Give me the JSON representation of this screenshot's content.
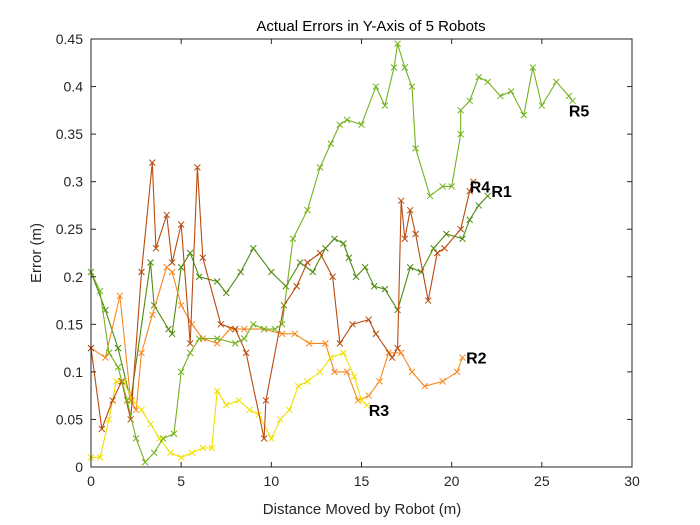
{
  "chart_data": {
    "type": "line",
    "title": "Actual Errors in Y-Axis of 5 Robots",
    "xlabel": "Distance Moved by Robot (m)",
    "ylabel": "Error (m)",
    "xlim": [
      0,
      30
    ],
    "ylim": [
      0,
      0.45
    ],
    "xticks": [
      0,
      5,
      10,
      15,
      20,
      25,
      30
    ],
    "yticks": [
      0,
      0.05,
      0.1,
      0.15,
      0.2,
      0.25,
      0.3,
      0.35,
      0.4,
      0.45
    ],
    "xtick_labels": [
      "0",
      "5",
      "10",
      "15",
      "20",
      "25",
      "30"
    ],
    "ytick_labels": [
      "0",
      "0.05",
      "0.1",
      "0.15",
      "0.2",
      "0.25",
      "0.3",
      "0.35",
      "0.4",
      "0.45"
    ],
    "grid": false,
    "marker": "x",
    "series": [
      {
        "name": "R1",
        "color": "#4f8a10",
        "points": [
          [
            0,
            0.205
          ],
          [
            0.8,
            0.165
          ],
          [
            1.5,
            0.125
          ],
          [
            2.2,
            0.07
          ],
          [
            3.3,
            0.215
          ],
          [
            3.5,
            0.17
          ],
          [
            4.3,
            0.145
          ],
          [
            4.5,
            0.14
          ],
          [
            5.0,
            0.21
          ],
          [
            5.5,
            0.225
          ],
          [
            6.0,
            0.2
          ],
          [
            7.0,
            0.195
          ],
          [
            7.5,
            0.183
          ],
          [
            8.3,
            0.205
          ],
          [
            9.0,
            0.23
          ],
          [
            10.0,
            0.205
          ],
          [
            10.8,
            0.19
          ],
          [
            11.6,
            0.215
          ],
          [
            12.3,
            0.205
          ],
          [
            13.0,
            0.23
          ],
          [
            13.5,
            0.24
          ],
          [
            14.0,
            0.235
          ],
          [
            14.3,
            0.22
          ],
          [
            14.7,
            0.2
          ],
          [
            15.2,
            0.21
          ],
          [
            15.7,
            0.19
          ],
          [
            16.3,
            0.187
          ],
          [
            17.0,
            0.165
          ],
          [
            17.7,
            0.21
          ],
          [
            18.3,
            0.205
          ],
          [
            19.0,
            0.23
          ],
          [
            19.7,
            0.245
          ],
          [
            20.6,
            0.24
          ],
          [
            21.0,
            0.26
          ],
          [
            21.5,
            0.275
          ],
          [
            22.0,
            0.285
          ]
        ],
        "label_at": [
          22.2,
          0.29
        ]
      },
      {
        "name": "R2",
        "color": "#f5891e",
        "points": [
          [
            0,
            0.125
          ],
          [
            0.8,
            0.115
          ],
          [
            1.6,
            0.18
          ],
          [
            2.2,
            0.07
          ],
          [
            2.5,
            0.06
          ],
          [
            2.8,
            0.12
          ],
          [
            3.4,
            0.16
          ],
          [
            4.2,
            0.21
          ],
          [
            4.5,
            0.205
          ],
          [
            5.0,
            0.17
          ],
          [
            5.6,
            0.15
          ],
          [
            6.2,
            0.135
          ],
          [
            7.0,
            0.13
          ],
          [
            7.7,
            0.145
          ],
          [
            8.5,
            0.145
          ],
          [
            9.6,
            0.145
          ],
          [
            10.6,
            0.14
          ],
          [
            11.3,
            0.14
          ],
          [
            12.1,
            0.13
          ],
          [
            13.0,
            0.13
          ],
          [
            13.5,
            0.1
          ],
          [
            14.2,
            0.1
          ],
          [
            14.8,
            0.07
          ],
          [
            15.4,
            0.075
          ],
          [
            16.0,
            0.09
          ],
          [
            16.5,
            0.12
          ],
          [
            17.2,
            0.12
          ],
          [
            17.8,
            0.1
          ],
          [
            18.5,
            0.085
          ],
          [
            19.5,
            0.09
          ],
          [
            20.3,
            0.1
          ],
          [
            20.6,
            0.115
          ]
        ],
        "label_at": [
          20.8,
          0.115
        ]
      },
      {
        "name": "R3",
        "color": "#f0e000",
        "points": [
          [
            0,
            0.01
          ],
          [
            0.5,
            0.01
          ],
          [
            1.0,
            0.05
          ],
          [
            1.4,
            0.09
          ],
          [
            1.8,
            0.09
          ],
          [
            2.3,
            0.07
          ],
          [
            2.8,
            0.06
          ],
          [
            3.3,
            0.045
          ],
          [
            3.8,
            0.03
          ],
          [
            4.4,
            0.015
          ],
          [
            5.0,
            0.01
          ],
          [
            5.6,
            0.015
          ],
          [
            6.2,
            0.02
          ],
          [
            6.7,
            0.02
          ],
          [
            7.0,
            0.08
          ],
          [
            7.5,
            0.065
          ],
          [
            8.2,
            0.07
          ],
          [
            8.8,
            0.06
          ],
          [
            9.3,
            0.055
          ],
          [
            10.0,
            0.03
          ],
          [
            10.5,
            0.05
          ],
          [
            11.0,
            0.06
          ],
          [
            11.5,
            0.085
          ],
          [
            12.0,
            0.09
          ],
          [
            12.7,
            0.1
          ],
          [
            13.3,
            0.115
          ],
          [
            14.0,
            0.12
          ],
          [
            14.6,
            0.095
          ],
          [
            15.0,
            0.07
          ],
          [
            15.3,
            0.065
          ]
        ],
        "label_at": [
          15.4,
          0.06
        ]
      },
      {
        "name": "R4",
        "color": "#b84a0e",
        "points": [
          [
            0,
            0.125
          ],
          [
            0.6,
            0.04
          ],
          [
            1.2,
            0.07
          ],
          [
            1.7,
            0.09
          ],
          [
            2.2,
            0.05
          ],
          [
            2.8,
            0.205
          ],
          [
            3.4,
            0.32
          ],
          [
            3.6,
            0.23
          ],
          [
            4.2,
            0.265
          ],
          [
            4.5,
            0.215
          ],
          [
            5.0,
            0.255
          ],
          [
            5.5,
            0.13
          ],
          [
            5.9,
            0.315
          ],
          [
            6.2,
            0.22
          ],
          [
            7.2,
            0.15
          ],
          [
            8.0,
            0.145
          ],
          [
            8.6,
            0.12
          ],
          [
            9.6,
            0.03
          ],
          [
            9.7,
            0.07
          ],
          [
            10.7,
            0.17
          ],
          [
            11.4,
            0.19
          ],
          [
            12.0,
            0.215
          ],
          [
            12.7,
            0.225
          ],
          [
            13.4,
            0.2
          ],
          [
            13.8,
            0.13
          ],
          [
            14.5,
            0.15
          ],
          [
            15.4,
            0.155
          ],
          [
            15.8,
            0.14
          ],
          [
            16.7,
            0.115
          ],
          [
            17.0,
            0.125
          ],
          [
            17.2,
            0.28
          ],
          [
            17.4,
            0.24
          ],
          [
            17.7,
            0.27
          ],
          [
            18.0,
            0.245
          ],
          [
            18.7,
            0.175
          ],
          [
            19.2,
            0.225
          ],
          [
            19.6,
            0.23
          ],
          [
            20.5,
            0.25
          ],
          [
            21.0,
            0.29
          ],
          [
            21.2,
            0.3
          ]
        ],
        "label_at": [
          21.0,
          0.295
        ]
      },
      {
        "name": "R5",
        "color": "#73b21d",
        "points": [
          [
            0,
            0.205
          ],
          [
            0.5,
            0.185
          ],
          [
            1.0,
            0.12
          ],
          [
            1.5,
            0.105
          ],
          [
            2.0,
            0.07
          ],
          [
            2.5,
            0.03
          ],
          [
            3.0,
            0.005
          ],
          [
            3.5,
            0.015
          ],
          [
            4.0,
            0.03
          ],
          [
            4.6,
            0.035
          ],
          [
            5.0,
            0.1
          ],
          [
            5.5,
            0.12
          ],
          [
            6.0,
            0.135
          ],
          [
            7.0,
            0.135
          ],
          [
            8.0,
            0.13
          ],
          [
            8.5,
            0.135
          ],
          [
            9.0,
            0.15
          ],
          [
            9.6,
            0.145
          ],
          [
            10.2,
            0.145
          ],
          [
            10.6,
            0.15
          ],
          [
            11.2,
            0.24
          ],
          [
            12.0,
            0.27
          ],
          [
            12.7,
            0.315
          ],
          [
            13.3,
            0.34
          ],
          [
            13.8,
            0.36
          ],
          [
            14.2,
            0.365
          ],
          [
            15.0,
            0.36
          ],
          [
            15.8,
            0.4
          ],
          [
            16.3,
            0.38
          ],
          [
            16.8,
            0.42
          ],
          [
            17.0,
            0.445
          ],
          [
            17.4,
            0.42
          ],
          [
            17.8,
            0.4
          ],
          [
            18.0,
            0.335
          ],
          [
            18.8,
            0.285
          ],
          [
            19.5,
            0.295
          ],
          [
            20.0,
            0.295
          ],
          [
            20.5,
            0.35
          ],
          [
            20.5,
            0.375
          ],
          [
            21.0,
            0.385
          ],
          [
            21.5,
            0.41
          ],
          [
            22.0,
            0.405
          ],
          [
            22.7,
            0.39
          ],
          [
            23.3,
            0.395
          ],
          [
            24.0,
            0.37
          ],
          [
            24.5,
            0.42
          ],
          [
            25.0,
            0.38
          ],
          [
            25.8,
            0.405
          ],
          [
            26.5,
            0.39
          ],
          [
            26.7,
            0.385
          ]
        ],
        "label_at": [
          26.5,
          0.375
        ]
      }
    ]
  }
}
